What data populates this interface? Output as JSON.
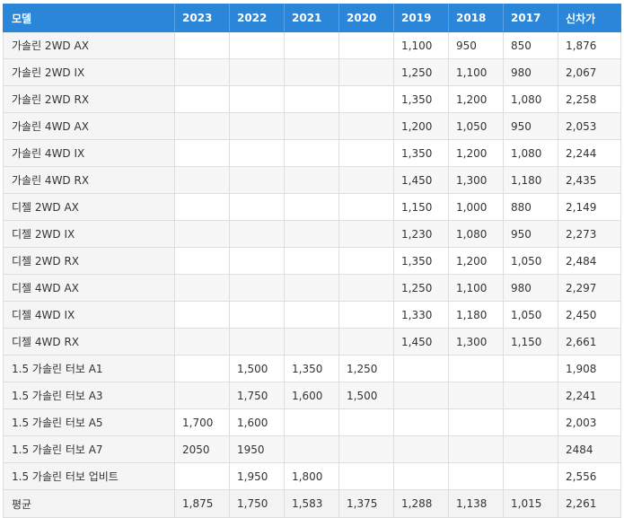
{
  "table": {
    "headers": [
      "모델",
      "2023",
      "2022",
      "2021",
      "2020",
      "2019",
      "2018",
      "2017",
      "신차가"
    ],
    "rows": [
      [
        "가솔린 2WD AX",
        "",
        "",
        "",
        "",
        "1,100",
        "950",
        "850",
        "1,876"
      ],
      [
        "가솔린 2WD IX",
        "",
        "",
        "",
        "",
        "1,250",
        "1,100",
        "980",
        "2,067"
      ],
      [
        "가솔린 2WD RX",
        "",
        "",
        "",
        "",
        "1,350",
        "1,200",
        "1,080",
        "2,258"
      ],
      [
        "가솔린 4WD AX",
        "",
        "",
        "",
        "",
        "1,200",
        "1,050",
        "950",
        "2,053"
      ],
      [
        "가솔린 4WD IX",
        "",
        "",
        "",
        "",
        "1,350",
        "1,200",
        "1,080",
        "2,244"
      ],
      [
        "가솔린 4WD RX",
        "",
        "",
        "",
        "",
        "1,450",
        "1,300",
        "1,180",
        "2,435"
      ],
      [
        "디젤 2WD AX",
        "",
        "",
        "",
        "",
        "1,150",
        "1,000",
        "880",
        "2,149"
      ],
      [
        "디젤 2WD IX",
        "",
        "",
        "",
        "",
        "1,230",
        "1,080",
        "950",
        "2,273"
      ],
      [
        "디젤 2WD RX",
        "",
        "",
        "",
        "",
        "1,350",
        "1,200",
        "1,050",
        "2,484"
      ],
      [
        "디젤 4WD AX",
        "",
        "",
        "",
        "",
        "1,250",
        "1,100",
        "980",
        "2,297"
      ],
      [
        "디젤 4WD IX",
        "",
        "",
        "",
        "",
        "1,330",
        "1,180",
        "1,050",
        "2,450"
      ],
      [
        "디젤 4WD RX",
        "",
        "",
        "",
        "",
        "1,450",
        "1,300",
        "1,150",
        "2,661"
      ],
      [
        "1.5 가솔린 터보 A1",
        "",
        "1,500",
        "1,350",
        "1,250",
        "",
        "",
        "",
        "1,908"
      ],
      [
        "1.5 가솔린 터보 A3",
        "",
        "1,750",
        "1,600",
        "1,500",
        "",
        "",
        "",
        "2,241"
      ],
      [
        "1.5 가솔린 터보 A5",
        "1,700",
        "1,600",
        "",
        "",
        "",
        "",
        "",
        "2,003"
      ],
      [
        "1.5 가솔린 터보 A7",
        "2050",
        "1950",
        "",
        "",
        "",
        "",
        "",
        "2484"
      ],
      [
        "1.5 가솔린 터보 업비트",
        "",
        "1,950",
        "1,800",
        "",
        "",
        "",
        "",
        "2,556"
      ]
    ],
    "footer": [
      "평균",
      "1,875",
      "1,750",
      "1,583",
      "1,375",
      "1,288",
      "1,138",
      "1,015",
      "2,261"
    ]
  }
}
